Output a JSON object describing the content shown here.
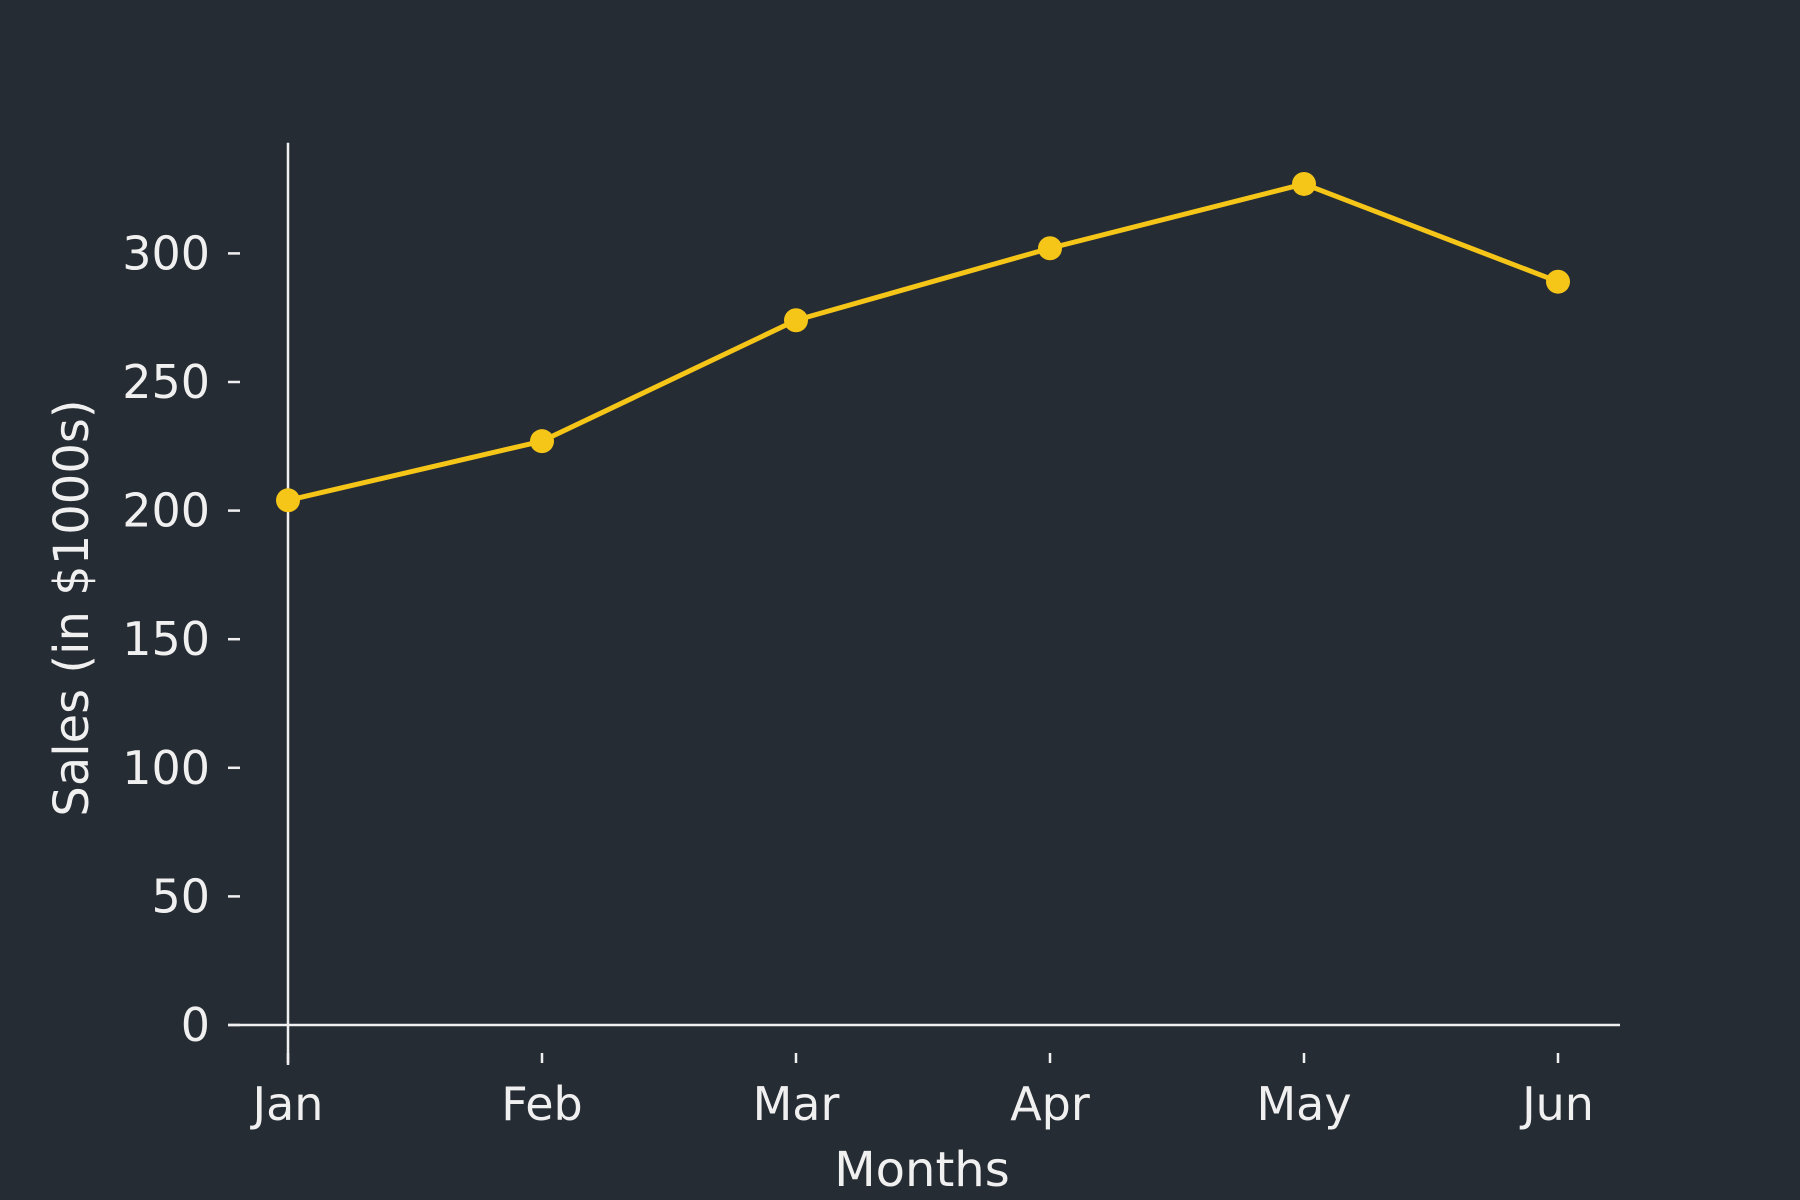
{
  "chart_data": {
    "type": "line",
    "title": "",
    "xlabel": "Months",
    "ylabel": "Sales (in $1000s)",
    "categories": [
      "Jan",
      "Feb",
      "Mar",
      "Apr",
      "May",
      "Jun"
    ],
    "series": [
      {
        "values": [
          204,
          227,
          274,
          302,
          327,
          289
        ]
      }
    ],
    "ylim": [
      0,
      343
    ],
    "yticks": [
      0,
      50,
      100,
      150,
      200,
      250,
      300
    ],
    "grid": false,
    "legend": "none",
    "colors": {
      "background": "#262c34",
      "series": "#f5c518",
      "axis": "#f0f0f0"
    }
  }
}
